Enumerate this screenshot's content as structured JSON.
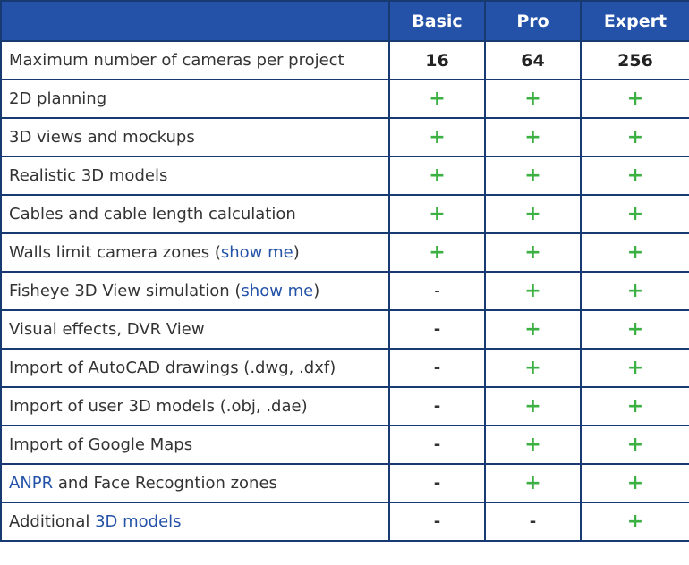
{
  "header": {
    "blank": "",
    "plans": [
      "Basic",
      "Pro",
      "Expert"
    ]
  },
  "colors": {
    "header_bg": "#2352a8",
    "border": "#173a73",
    "plus": "#3cb043",
    "link": "#2352a8"
  },
  "rows": [
    {
      "parts": [
        {
          "text": "Maximum number of cameras per project",
          "link": false
        }
      ],
      "values": [
        "16",
        "64",
        "256"
      ]
    },
    {
      "parts": [
        {
          "text": "2D planning",
          "link": false
        }
      ],
      "values": [
        "+",
        "+",
        "+"
      ]
    },
    {
      "parts": [
        {
          "text": "3D views and mockups",
          "link": false
        }
      ],
      "values": [
        "+",
        "+",
        "+"
      ]
    },
    {
      "parts": [
        {
          "text": "Realistic 3D models",
          "link": false
        }
      ],
      "values": [
        "+",
        "+",
        "+"
      ]
    },
    {
      "parts": [
        {
          "text": "Cables and cable length calculation",
          "link": false
        }
      ],
      "values": [
        "+",
        "+",
        "+"
      ]
    },
    {
      "parts": [
        {
          "text": "Walls limit camera zones (",
          "link": false
        },
        {
          "text": "show me",
          "link": true
        },
        {
          "text": ")",
          "link": false
        }
      ],
      "values": [
        "+",
        "+",
        "+"
      ]
    },
    {
      "parts": [
        {
          "text": "Fisheye 3D View simulation (",
          "link": false
        },
        {
          "text": "show me",
          "link": true
        },
        {
          "text": ")",
          "link": false
        }
      ],
      "values": [
        "-",
        "+",
        "+"
      ]
    },
    {
      "parts": [
        {
          "text": "Visual effects, DVR View",
          "link": false
        }
      ],
      "values": [
        "-",
        "+",
        "+"
      ]
    },
    {
      "parts": [
        {
          "text": "Import of AutoCAD drawings (.dwg, .dxf)",
          "link": false
        }
      ],
      "values": [
        "-",
        "+",
        "+"
      ]
    },
    {
      "parts": [
        {
          "text": "Import of user 3D models (.obj, .dae)",
          "link": false
        }
      ],
      "values": [
        "-",
        "+",
        "+"
      ]
    },
    {
      "parts": [
        {
          "text": "Import of Google Maps",
          "link": false
        }
      ],
      "values": [
        "-",
        "+",
        "+"
      ]
    },
    {
      "parts": [
        {
          "text": "ANPR",
          "link": true
        },
        {
          "text": " and Face Recogntion zones",
          "link": false
        }
      ],
      "values": [
        "-",
        "+",
        "+"
      ]
    },
    {
      "parts": [
        {
          "text": "Additional ",
          "link": false
        },
        {
          "text": "3D models",
          "link": true
        }
      ],
      "values": [
        "-",
        "-",
        "+"
      ]
    }
  ]
}
